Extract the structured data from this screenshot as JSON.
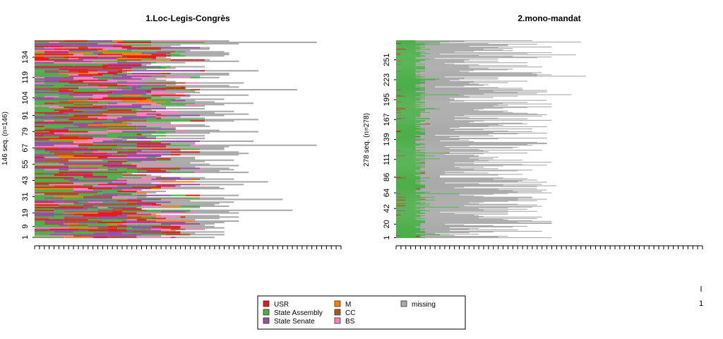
{
  "colors": {
    "USR": "#e41a1c",
    "State Assembly": "#4daf4a",
    "State Senate": "#984ea3",
    "M": "#ff7f00",
    "CC": "#a65628",
    "BS": "#f781bf",
    "missing": "#aaaaaa"
  },
  "legend": {
    "items": [
      {
        "label": "USR",
        "color": "#e41a1c"
      },
      {
        "label": "State Assembly",
        "color": "#4daf4a"
      },
      {
        "label": "State Senate",
        "color": "#984ea3"
      },
      {
        "label": "M",
        "color": "#ff7f00"
      },
      {
        "label": "CC",
        "color": "#a65628"
      },
      {
        "label": "BS",
        "color": "#f781bf"
      },
      {
        "label": "missing",
        "color": "#aaaaaa"
      }
    ]
  },
  "chart_data": [
    {
      "type": "sequence-index-plot",
      "title": "1.Loc-Legis-Congrès",
      "ylabel": "146 seq. (n=146)",
      "n_sequences": 146,
      "n_positions": 63,
      "y_tick_labels": [
        "1",
        "9",
        "19",
        "31",
        "43",
        "55",
        "67",
        "79",
        "91",
        "104",
        "119",
        "134"
      ],
      "states": [
        "USR",
        "State Assembly",
        "State Senate",
        "M",
        "CC",
        "BS",
        "missing"
      ],
      "dominant_states": [
        "State Assembly",
        "State Senate",
        "USR",
        "BS",
        "CC",
        "M",
        "missing"
      ]
    },
    {
      "type": "sequence-index-plot",
      "title": "2.mono-mandat",
      "ylabel": "278 seq. (n=278)",
      "n_sequences": 278,
      "n_positions": 63,
      "y_tick_labels": [
        "1",
        "20",
        "42",
        "64",
        "86",
        "111",
        "139",
        "167",
        "195",
        "223",
        "251"
      ],
      "states": [
        "State Assembly",
        "missing",
        "CC",
        "USR",
        "State Senate"
      ],
      "dominant_states": [
        "State Assembly",
        "missing"
      ]
    }
  ],
  "extra_axis": {
    "tick_label": "1"
  }
}
